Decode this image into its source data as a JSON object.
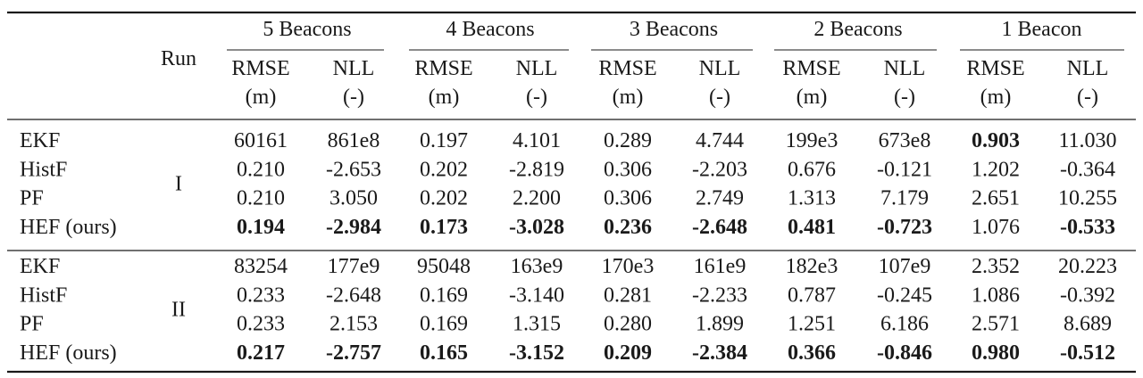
{
  "table": {
    "run_header": "Run",
    "groups": [
      "5 Beacons",
      "4 Beacons",
      "3 Beacons",
      "2 Beacons",
      "1 Beacon"
    ],
    "subheaders": [
      {
        "metric": "RMSE",
        "unit": "(m)"
      },
      {
        "metric": "NLL",
        "unit": "(-)"
      }
    ],
    "blocks": [
      {
        "run": "I",
        "rows": [
          {
            "method": "EKF",
            "cells": [
              {
                "value": "60161",
                "bold": false
              },
              {
                "value": "861e8",
                "bold": false
              },
              {
                "value": "0.197",
                "bold": false
              },
              {
                "value": "4.101",
                "bold": false
              },
              {
                "value": "0.289",
                "bold": false
              },
              {
                "value": "4.744",
                "bold": false
              },
              {
                "value": "199e3",
                "bold": false
              },
              {
                "value": "673e8",
                "bold": false
              },
              {
                "value": "0.903",
                "bold": true
              },
              {
                "value": "11.030",
                "bold": false
              }
            ]
          },
          {
            "method": "HistF",
            "cells": [
              {
                "value": "0.210",
                "bold": false
              },
              {
                "value": "-2.653",
                "bold": false
              },
              {
                "value": "0.202",
                "bold": false
              },
              {
                "value": "-2.819",
                "bold": false
              },
              {
                "value": "0.306",
                "bold": false
              },
              {
                "value": "-2.203",
                "bold": false
              },
              {
                "value": "0.676",
                "bold": false
              },
              {
                "value": "-0.121",
                "bold": false
              },
              {
                "value": "1.202",
                "bold": false
              },
              {
                "value": "-0.364",
                "bold": false
              }
            ]
          },
          {
            "method": "PF",
            "cells": [
              {
                "value": "0.210",
                "bold": false
              },
              {
                "value": "3.050",
                "bold": false
              },
              {
                "value": "0.202",
                "bold": false
              },
              {
                "value": "2.200",
                "bold": false
              },
              {
                "value": "0.306",
                "bold": false
              },
              {
                "value": "2.749",
                "bold": false
              },
              {
                "value": "1.313",
                "bold": false
              },
              {
                "value": "7.179",
                "bold": false
              },
              {
                "value": "2.651",
                "bold": false
              },
              {
                "value": "10.255",
                "bold": false
              }
            ]
          },
          {
            "method": "HEF (ours)",
            "cells": [
              {
                "value": "0.194",
                "bold": true
              },
              {
                "value": "-2.984",
                "bold": true
              },
              {
                "value": "0.173",
                "bold": true
              },
              {
                "value": "-3.028",
                "bold": true
              },
              {
                "value": "0.236",
                "bold": true
              },
              {
                "value": "-2.648",
                "bold": true
              },
              {
                "value": "0.481",
                "bold": true
              },
              {
                "value": "-0.723",
                "bold": true
              },
              {
                "value": "1.076",
                "bold": false
              },
              {
                "value": "-0.533",
                "bold": true
              }
            ]
          }
        ]
      },
      {
        "run": "II",
        "rows": [
          {
            "method": "EKF",
            "cells": [
              {
                "value": "83254",
                "bold": false
              },
              {
                "value": "177e9",
                "bold": false
              },
              {
                "value": "95048",
                "bold": false
              },
              {
                "value": "163e9",
                "bold": false
              },
              {
                "value": "170e3",
                "bold": false
              },
              {
                "value": "161e9",
                "bold": false
              },
              {
                "value": "182e3",
                "bold": false
              },
              {
                "value": "107e9",
                "bold": false
              },
              {
                "value": "2.352",
                "bold": false
              },
              {
                "value": "20.223",
                "bold": false
              }
            ]
          },
          {
            "method": "HistF",
            "cells": [
              {
                "value": "0.233",
                "bold": false
              },
              {
                "value": "-2.648",
                "bold": false
              },
              {
                "value": "0.169",
                "bold": false
              },
              {
                "value": "-3.140",
                "bold": false
              },
              {
                "value": "0.281",
                "bold": false
              },
              {
                "value": "-2.233",
                "bold": false
              },
              {
                "value": "0.787",
                "bold": false
              },
              {
                "value": "-0.245",
                "bold": false
              },
              {
                "value": "1.086",
                "bold": false
              },
              {
                "value": "-0.392",
                "bold": false
              }
            ]
          },
          {
            "method": "PF",
            "cells": [
              {
                "value": "0.233",
                "bold": false
              },
              {
                "value": "2.153",
                "bold": false
              },
              {
                "value": "0.169",
                "bold": false
              },
              {
                "value": "1.315",
                "bold": false
              },
              {
                "value": "0.280",
                "bold": false
              },
              {
                "value": "1.899",
                "bold": false
              },
              {
                "value": "1.251",
                "bold": false
              },
              {
                "value": "6.186",
                "bold": false
              },
              {
                "value": "2.571",
                "bold": false
              },
              {
                "value": "8.689",
                "bold": false
              }
            ]
          },
          {
            "method": "HEF (ours)",
            "cells": [
              {
                "value": "0.217",
                "bold": true
              },
              {
                "value": "-2.757",
                "bold": true
              },
              {
                "value": "0.165",
                "bold": true
              },
              {
                "value": "-3.152",
                "bold": true
              },
              {
                "value": "0.209",
                "bold": true
              },
              {
                "value": "-2.384",
                "bold": true
              },
              {
                "value": "0.366",
                "bold": true
              },
              {
                "value": "-0.846",
                "bold": true
              },
              {
                "value": "0.980",
                "bold": true
              },
              {
                "value": "-0.512",
                "bold": true
              }
            ]
          }
        ]
      }
    ]
  }
}
